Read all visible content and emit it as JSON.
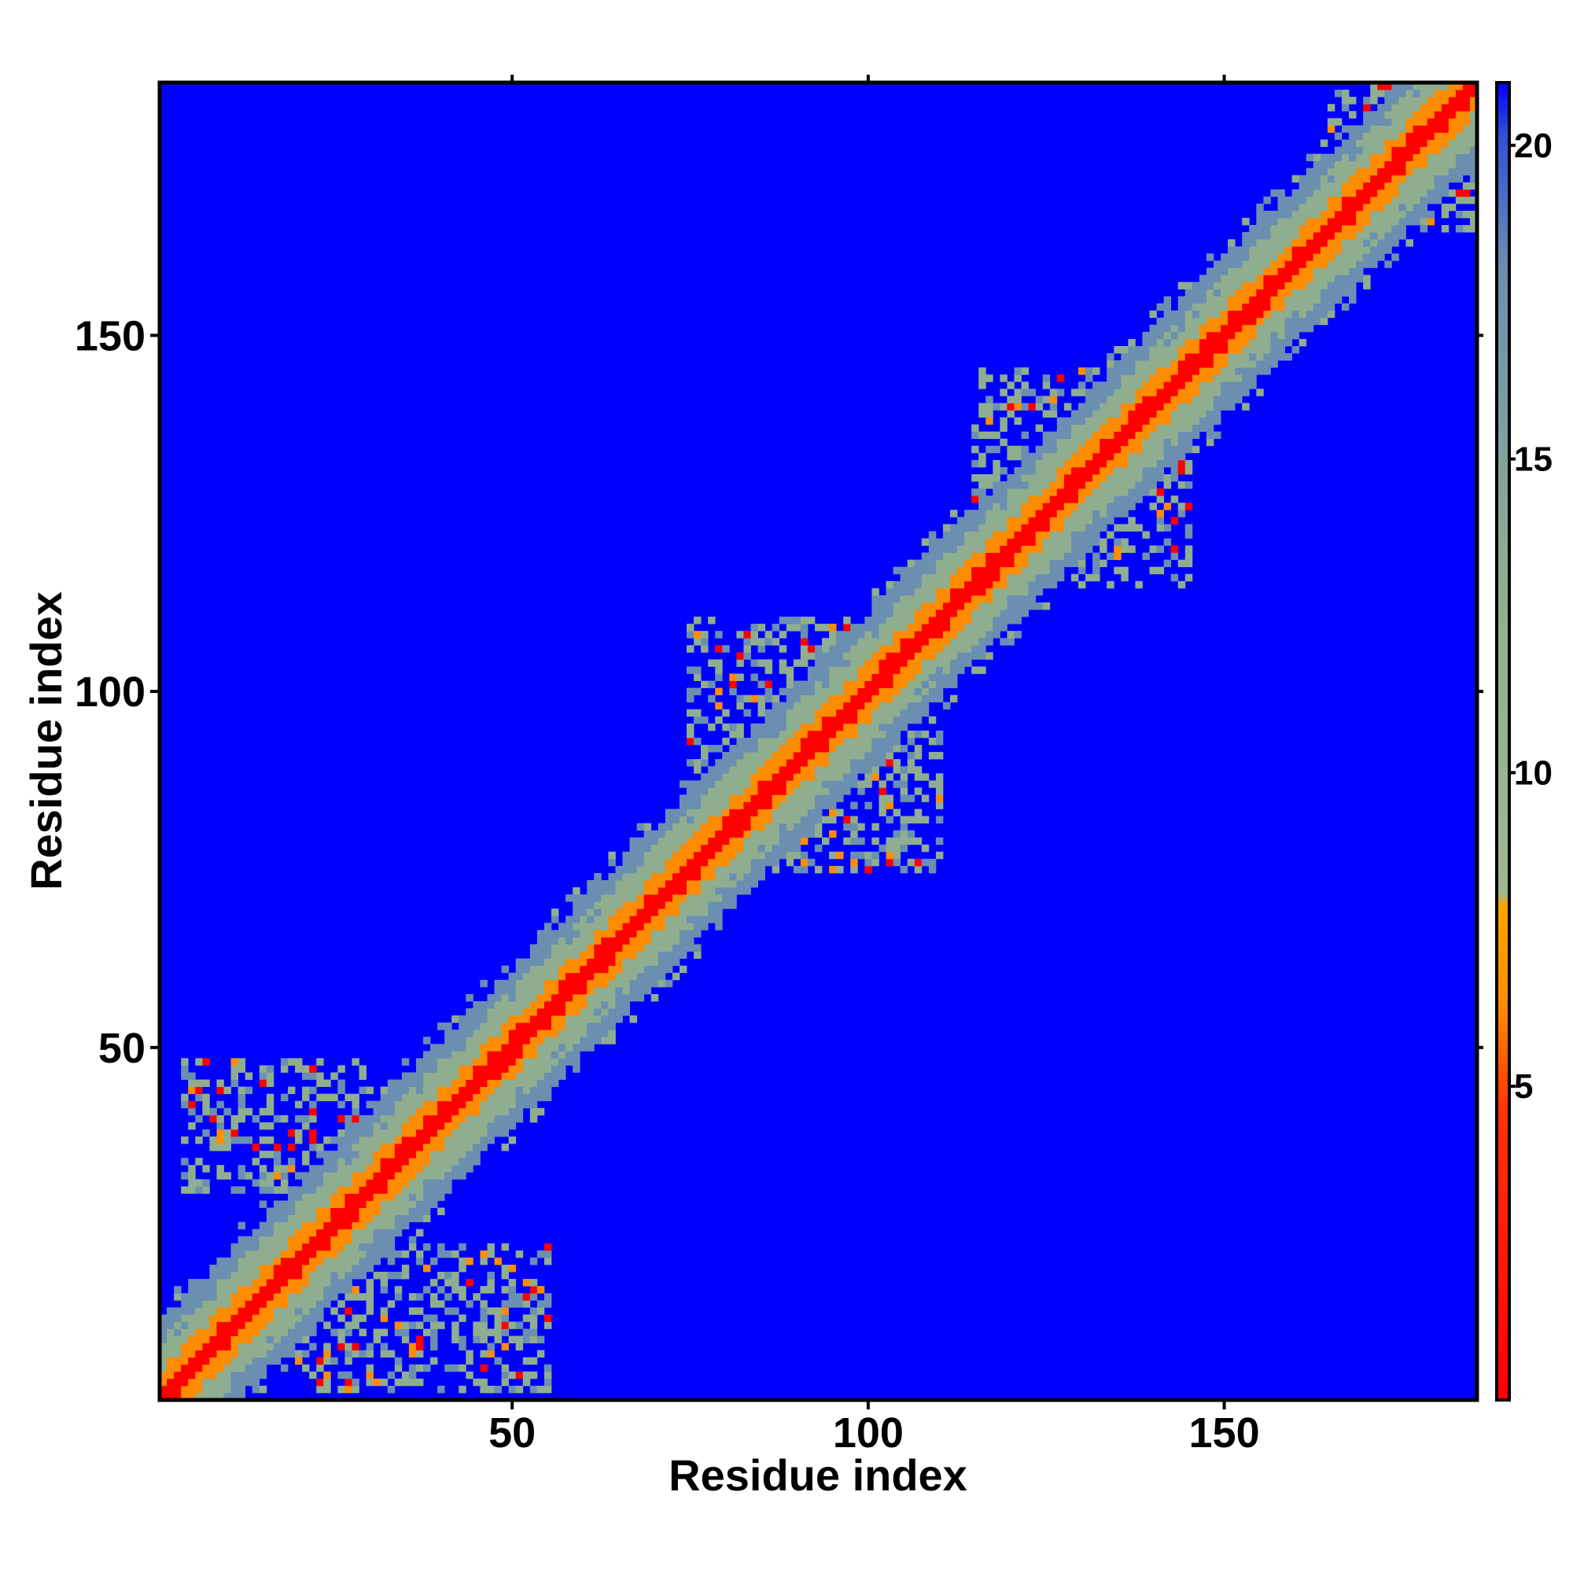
{
  "chart_data": {
    "type": "heatmap",
    "title": "",
    "xlabel": "Residue index",
    "ylabel": "Residue index",
    "n_residues": 185,
    "xlim": [
      1,
      185
    ],
    "ylim": [
      1,
      185
    ],
    "x_ticks": [
      50,
      100,
      150
    ],
    "y_ticks": [
      50,
      100,
      150
    ],
    "colorbar": {
      "range": [
        0,
        21
      ],
      "ticks": [
        5,
        10,
        15,
        20
      ],
      "background_value": 21,
      "colors": {
        "near": "#ff0000",
        "mid": "#ff8c00",
        "far": "#8fae8f",
        "very_far": "#6a8fb0",
        "background": "#0000ff"
      }
    },
    "features": {
      "diagonal_band_halfwidth": 10,
      "contact_patches": [
        {
          "x": [
            4,
            30
          ],
          "y": [
            30,
            48
          ],
          "note": "contacts off diagonal, lower-left upper wing"
        },
        {
          "x": [
            20,
            55
          ],
          "y": [
            2,
            22
          ],
          "note": "contacts off diagonal, lower-left lower wing"
        },
        {
          "x": [
            115,
            145
          ],
          "y": [
            115,
            145
          ],
          "note": "broadened band"
        },
        {
          "x": [
            75,
            110
          ],
          "y": [
            75,
            110
          ],
          "note": "broadened band"
        },
        {
          "x": [
            165,
            185
          ],
          "y": [
            165,
            185
          ],
          "note": "broadened band"
        }
      ]
    }
  }
}
